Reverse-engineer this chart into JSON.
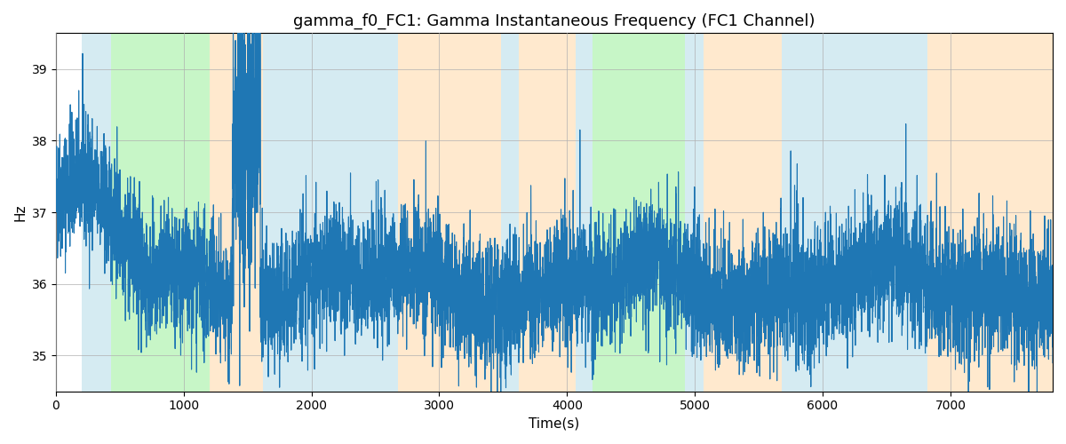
{
  "title": "gamma_f0_FC1: Gamma Instantaneous Frequency (FC1 Channel)",
  "xlabel": "Time(s)",
  "ylabel": "Hz",
  "xlim": [
    0,
    7800
  ],
  "ylim": [
    34.5,
    39.5
  ],
  "yticks": [
    35,
    36,
    37,
    38,
    39
  ],
  "line_color": "#1f77b4",
  "line_width": 0.8,
  "background_color": "#ffffff",
  "grid_color": "#b0b0b0",
  "figsize": [
    12,
    5
  ],
  "dpi": 100,
  "bands": [
    {
      "xmin": 200,
      "xmax": 430,
      "color": "#add8e6",
      "alpha": 0.5
    },
    {
      "xmin": 430,
      "xmax": 1200,
      "color": "#90ee90",
      "alpha": 0.5
    },
    {
      "xmin": 1200,
      "xmax": 1620,
      "color": "#ffd59e",
      "alpha": 0.5
    },
    {
      "xmin": 1620,
      "xmax": 2150,
      "color": "#add8e6",
      "alpha": 0.5
    },
    {
      "xmin": 2150,
      "xmax": 2680,
      "color": "#add8e6",
      "alpha": 0.5
    },
    {
      "xmin": 2680,
      "xmax": 3480,
      "color": "#ffd59e",
      "alpha": 0.5
    },
    {
      "xmin": 3480,
      "xmax": 3620,
      "color": "#add8e6",
      "alpha": 0.5
    },
    {
      "xmin": 3620,
      "xmax": 4070,
      "color": "#ffd59e",
      "alpha": 0.5
    },
    {
      "xmin": 4070,
      "xmax": 4200,
      "color": "#add8e6",
      "alpha": 0.5
    },
    {
      "xmin": 4200,
      "xmax": 4920,
      "color": "#90ee90",
      "alpha": 0.5
    },
    {
      "xmin": 4920,
      "xmax": 5070,
      "color": "#add8e6",
      "alpha": 0.5
    },
    {
      "xmin": 5070,
      "xmax": 5680,
      "color": "#ffd59e",
      "alpha": 0.5
    },
    {
      "xmin": 5680,
      "xmax": 5980,
      "color": "#add8e6",
      "alpha": 0.5
    },
    {
      "xmin": 5980,
      "xmax": 6820,
      "color": "#add8e6",
      "alpha": 0.5
    },
    {
      "xmin": 6820,
      "xmax": 7800,
      "color": "#ffd59e",
      "alpha": 0.5
    }
  ],
  "seed": 42,
  "n_points": 7800,
  "base_freq": 36.0,
  "noise_scale": 0.45
}
